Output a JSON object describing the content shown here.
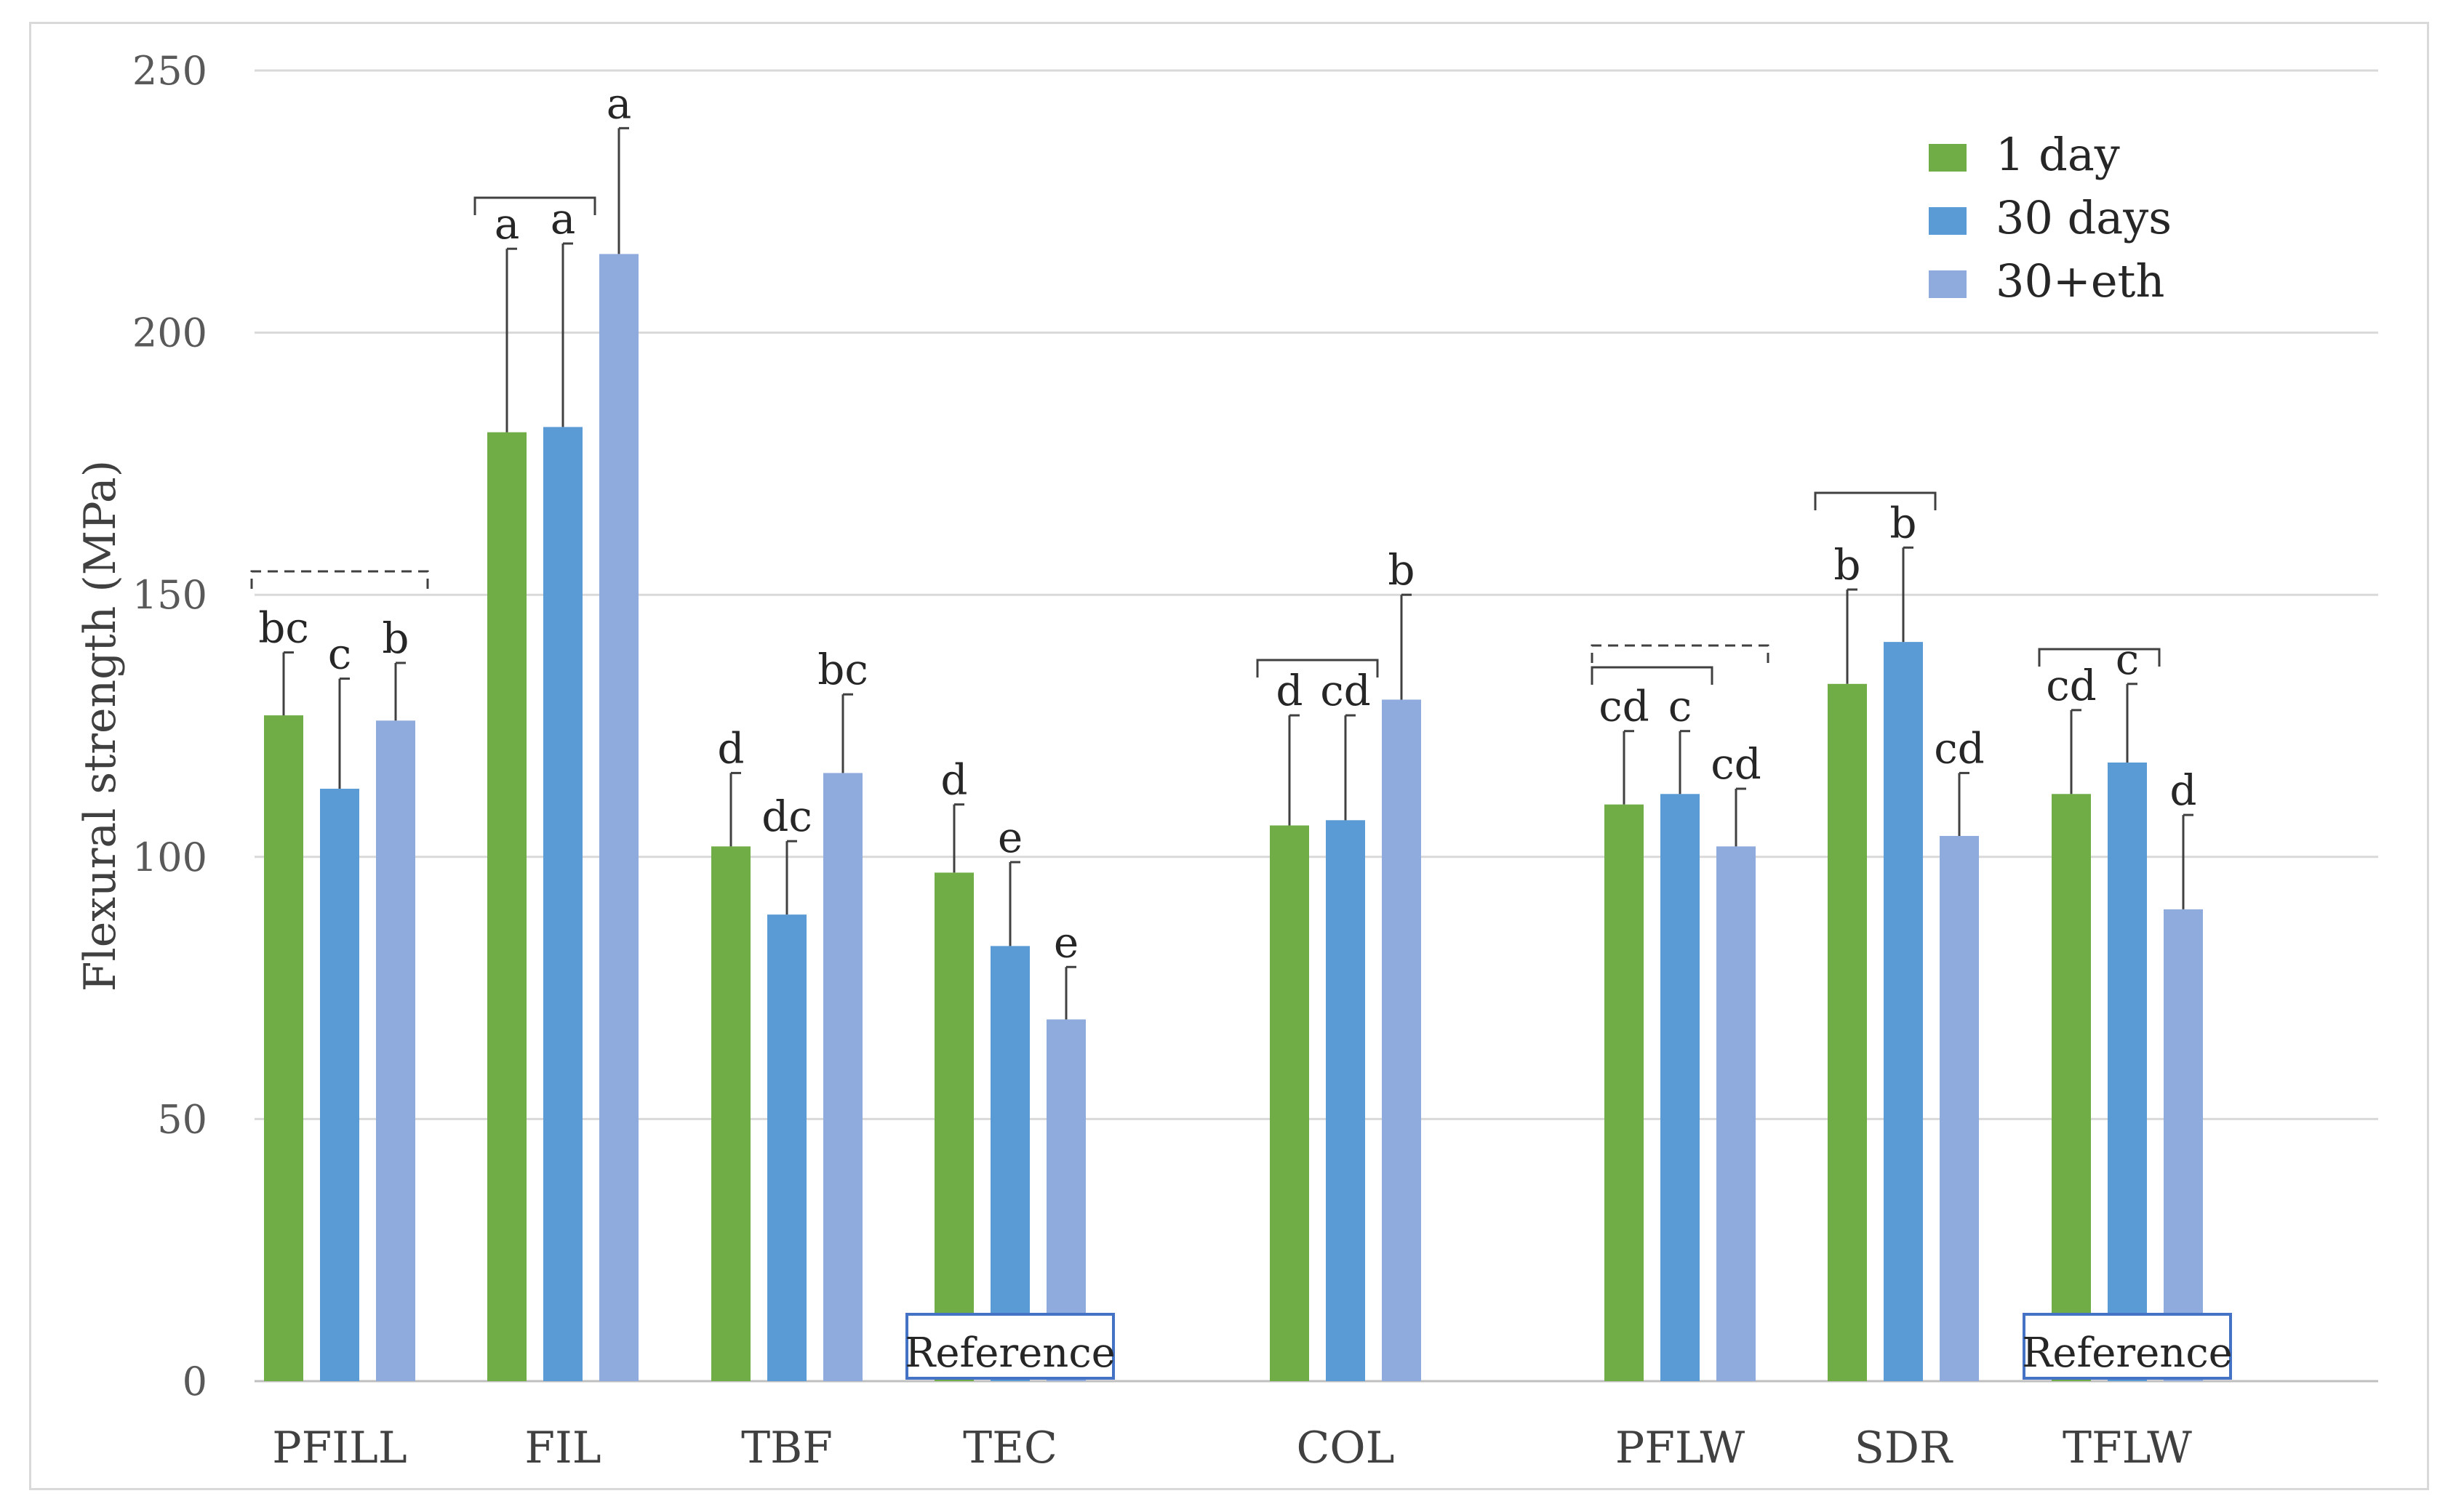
{
  "chart_data": {
    "type": "bar",
    "title": "",
    "xlabel": "",
    "ylabel": "Flexural strength (MPa)",
    "ylim": [
      0,
      250
    ],
    "yticks": [
      0,
      50,
      100,
      150,
      200,
      250
    ],
    "grid": true,
    "legend_position": "top-right",
    "categories": [
      "PFILL",
      "FIL",
      "TBF",
      "TEC",
      "COL",
      "PFLW",
      "SDR",
      "TFLW"
    ],
    "series": [
      {
        "name": "1 day",
        "color": "#70AD47",
        "values": [
          127,
          181,
          102,
          97,
          106,
          110,
          133,
          112
        ],
        "errors": [
          12,
          35,
          14,
          13,
          21,
          14,
          18,
          16
        ],
        "letters": [
          "bc",
          "a",
          "d",
          "d",
          "d",
          "cd",
          "b",
          "cd"
        ]
      },
      {
        "name": "30 days",
        "color": "#5B9BD5",
        "values": [
          113,
          182,
          89,
          83,
          107,
          112,
          141,
          118
        ],
        "errors": [
          21,
          35,
          14,
          16,
          20,
          12,
          18,
          15
        ],
        "letters": [
          "c",
          "a",
          "dc",
          "e",
          "cd",
          "c",
          "b",
          "c"
        ]
      },
      {
        "name": "30+eth",
        "color": "#8FAADC",
        "values": [
          126,
          215,
          116,
          69,
          130,
          102,
          104,
          90
        ],
        "errors": [
          11,
          24,
          15,
          10,
          20,
          11,
          12,
          18
        ],
        "letters": [
          "b",
          "a",
          "bc",
          "e",
          "b",
          "cd",
          "cd",
          "d"
        ]
      }
    ],
    "annotations": [
      {
        "type": "reference_box",
        "category": "TEC",
        "text": "Reference"
      },
      {
        "type": "reference_box",
        "category": "TFLW",
        "text": "Reference"
      }
    ],
    "brackets": [
      {
        "category": "PFILL",
        "from_series": 0,
        "to_series": 2,
        "style": "dashed"
      },
      {
        "category": "FIL",
        "from_series": 0,
        "to_series": 1,
        "style": "solid"
      },
      {
        "category": "COL",
        "from_series": 0,
        "to_series": 1,
        "style": "solid"
      },
      {
        "category": "PFLW",
        "from_series": 0,
        "to_series": 2,
        "style": "dashed"
      },
      {
        "category": "PFLW",
        "from_series": 0,
        "to_series": 1,
        "style": "solid"
      },
      {
        "category": "SDR",
        "from_series": 0,
        "to_series": 1,
        "style": "solid"
      },
      {
        "category": "TFLW",
        "from_series": 0,
        "to_series": 1,
        "style": "solid"
      }
    ]
  }
}
